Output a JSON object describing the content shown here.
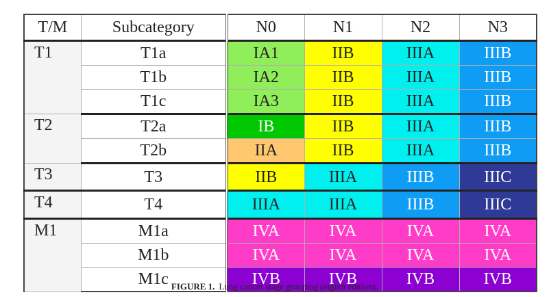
{
  "header": [
    "T/M",
    "Subcategory",
    "N0",
    "N1",
    "N2",
    "N3"
  ],
  "groups": [
    {
      "tm": "T1",
      "rows": [
        {
          "sub": "T1a",
          "cells": [
            {
              "text": "IA1",
              "bg": "#90ee5a",
              "color": "#222222"
            },
            {
              "text": "IIB",
              "bg": "#ffff00",
              "color": "#222222"
            },
            {
              "text": "IIIA",
              "bg": "#00f0f0",
              "color": "#222222"
            },
            {
              "text": "IIIB",
              "bg": "#0f9cf5",
              "color": "#ffffff"
            }
          ]
        },
        {
          "sub": "T1b",
          "cells": [
            {
              "text": "IA2",
              "bg": "#90ee5a",
              "color": "#222222"
            },
            {
              "text": "IIB",
              "bg": "#ffff00",
              "color": "#222222"
            },
            {
              "text": "IIIA",
              "bg": "#00f0f0",
              "color": "#222222"
            },
            {
              "text": "IIIB",
              "bg": "#0f9cf5",
              "color": "#ffffff"
            }
          ]
        },
        {
          "sub": "T1c",
          "cells": [
            {
              "text": "IA3",
              "bg": "#90ee5a",
              "color": "#222222"
            },
            {
              "text": "IIB",
              "bg": "#ffff00",
              "color": "#222222"
            },
            {
              "text": "IIIA",
              "bg": "#00f0f0",
              "color": "#222222"
            },
            {
              "text": "IIIB",
              "bg": "#0f9cf5",
              "color": "#ffffff"
            }
          ]
        }
      ]
    },
    {
      "tm": "T2",
      "rows": [
        {
          "sub": "T2a",
          "cells": [
            {
              "text": "IB",
              "bg": "#00c800",
              "color": "#ffffff"
            },
            {
              "text": "IIB",
              "bg": "#ffff00",
              "color": "#222222"
            },
            {
              "text": "IIIA",
              "bg": "#00f0f0",
              "color": "#222222"
            },
            {
              "text": "IIIB",
              "bg": "#0f9cf5",
              "color": "#ffffff"
            }
          ]
        },
        {
          "sub": "T2b",
          "cells": [
            {
              "text": "IIA",
              "bg": "#ffc870",
              "color": "#222222"
            },
            {
              "text": "IIB",
              "bg": "#ffff00",
              "color": "#222222"
            },
            {
              "text": "IIIA",
              "bg": "#00f0f0",
              "color": "#222222"
            },
            {
              "text": "IIIB",
              "bg": "#0f9cf5",
              "color": "#ffffff"
            }
          ]
        }
      ]
    },
    {
      "tm": "T3",
      "rows": [
        {
          "sub": "T3",
          "cells": [
            {
              "text": "IIB",
              "bg": "#ffff00",
              "color": "#222222"
            },
            {
              "text": "IIIA",
              "bg": "#00f0f0",
              "color": "#222222"
            },
            {
              "text": "IIIB",
              "bg": "#0f9cf5",
              "color": "#ffffff"
            },
            {
              "text": "IIIC",
              "bg": "#2e3a96",
              "color": "#ffffff"
            }
          ]
        }
      ]
    },
    {
      "tm": "T4",
      "rows": [
        {
          "sub": "T4",
          "cells": [
            {
              "text": "IIIA",
              "bg": "#00f0f0",
              "color": "#222222"
            },
            {
              "text": "IIIA",
              "bg": "#00f0f0",
              "color": "#222222"
            },
            {
              "text": "IIIB",
              "bg": "#0f9cf5",
              "color": "#ffffff"
            },
            {
              "text": "IIIC",
              "bg": "#2e3a96",
              "color": "#ffffff"
            }
          ]
        }
      ]
    },
    {
      "tm": "M1",
      "rows": [
        {
          "sub": "M1a",
          "cells": [
            {
              "text": "IVA",
              "bg": "#ff3cc8",
              "color": "#ffffff"
            },
            {
              "text": "IVA",
              "bg": "#ff3cc8",
              "color": "#ffffff"
            },
            {
              "text": "IVA",
              "bg": "#ff3cc8",
              "color": "#ffffff"
            },
            {
              "text": "IVA",
              "bg": "#ff3cc8",
              "color": "#ffffff"
            }
          ]
        },
        {
          "sub": "M1b",
          "cells": [
            {
              "text": "IVA",
              "bg": "#ff3cc8",
              "color": "#ffffff"
            },
            {
              "text": "IVA",
              "bg": "#ff3cc8",
              "color": "#ffffff"
            },
            {
              "text": "IVA",
              "bg": "#ff3cc8",
              "color": "#ffffff"
            },
            {
              "text": "IVA",
              "bg": "#ff3cc8",
              "color": "#ffffff"
            }
          ]
        },
        {
          "sub": "M1c",
          "cells": [
            {
              "text": "IVB",
              "bg": "#8c00d2",
              "color": "#ffffff"
            },
            {
              "text": "IVB",
              "bg": "#8c00d2",
              "color": "#ffffff"
            },
            {
              "text": "IVB",
              "bg": "#8c00d2",
              "color": "#ffffff"
            },
            {
              "text": "IVB",
              "bg": "#8c00d2",
              "color": "#ffffff"
            }
          ]
        }
      ]
    }
  ],
  "caption": {
    "label": "FIGURE 1.",
    "text": "Lung cancer stage grouping (eighth edition)."
  }
}
